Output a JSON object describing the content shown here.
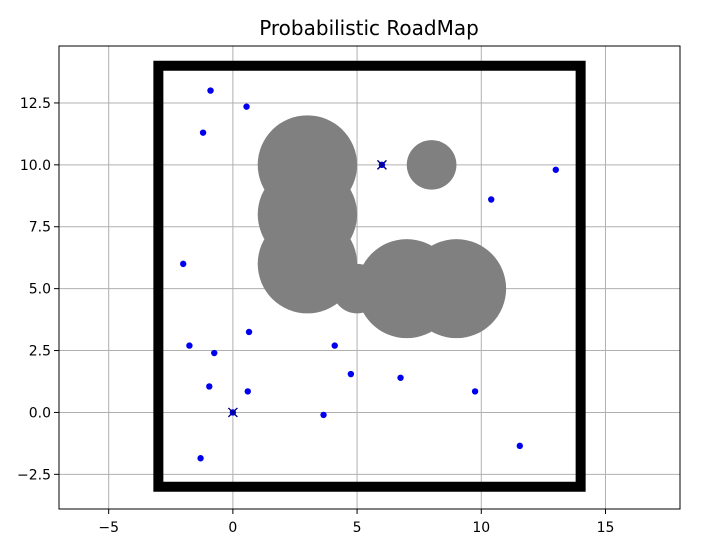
{
  "chart_data": {
    "type": "scatter",
    "title": "Probabilistic RoadMap",
    "xlabel": "",
    "ylabel": "",
    "xlim": [
      -7,
      18
    ],
    "ylim": [
      -3.9,
      14.8
    ],
    "grid": true,
    "x_ticks": [
      -5,
      0,
      5,
      10,
      15
    ],
    "x_tick_labels": [
      "−5",
      "0",
      "5",
      "10",
      "15"
    ],
    "y_ticks": [
      -2.5,
      0.0,
      2.5,
      5.0,
      7.5,
      10.0,
      12.5
    ],
    "y_tick_labels": [
      "−2.5",
      "0.0",
      "2.5",
      "5.0",
      "7.5",
      "10.0",
      "12.5"
    ],
    "colors": {
      "boundary": "#000000",
      "obstacle": "#808080",
      "sample": "#0000ee",
      "endpoint": "#000080"
    },
    "boundary": {
      "x": [
        -3,
        14,
        14,
        -3,
        -3
      ],
      "y": [
        -3,
        -3,
        14,
        14,
        -3
      ]
    },
    "obstacles": [
      {
        "cx": 3,
        "cy": 10,
        "r": 2
      },
      {
        "cx": 3,
        "cy": 8,
        "r": 2
      },
      {
        "cx": 3,
        "cy": 6,
        "r": 2
      },
      {
        "cx": 5,
        "cy": 5,
        "r": 1
      },
      {
        "cx": 7,
        "cy": 5,
        "r": 2
      },
      {
        "cx": 9,
        "cy": 5,
        "r": 2
      },
      {
        "cx": 8,
        "cy": 10,
        "r": 1
      }
    ],
    "samples": [
      {
        "x": -0.9,
        "y": 13.0
      },
      {
        "x": 0.55,
        "y": 12.35
      },
      {
        "x": -1.2,
        "y": 11.3
      },
      {
        "x": 13.0,
        "y": 9.8
      },
      {
        "x": 10.4,
        "y": 8.6
      },
      {
        "x": -2.0,
        "y": 6.0
      },
      {
        "x": 0.65,
        "y": 3.25
      },
      {
        "x": -1.75,
        "y": 2.7
      },
      {
        "x": -0.75,
        "y": 2.4
      },
      {
        "x": 4.1,
        "y": 2.7
      },
      {
        "x": 4.75,
        "y": 1.55
      },
      {
        "x": 6.75,
        "y": 1.4
      },
      {
        "x": -0.95,
        "y": 1.05
      },
      {
        "x": 0.6,
        "y": 0.85
      },
      {
        "x": 9.75,
        "y": 0.85
      },
      {
        "x": 3.65,
        "y": -0.1
      },
      {
        "x": 11.55,
        "y": -1.35
      },
      {
        "x": -1.3,
        "y": -1.85
      }
    ],
    "endpoints": [
      {
        "x": 0,
        "y": 0
      },
      {
        "x": 6,
        "y": 10
      }
    ]
  }
}
